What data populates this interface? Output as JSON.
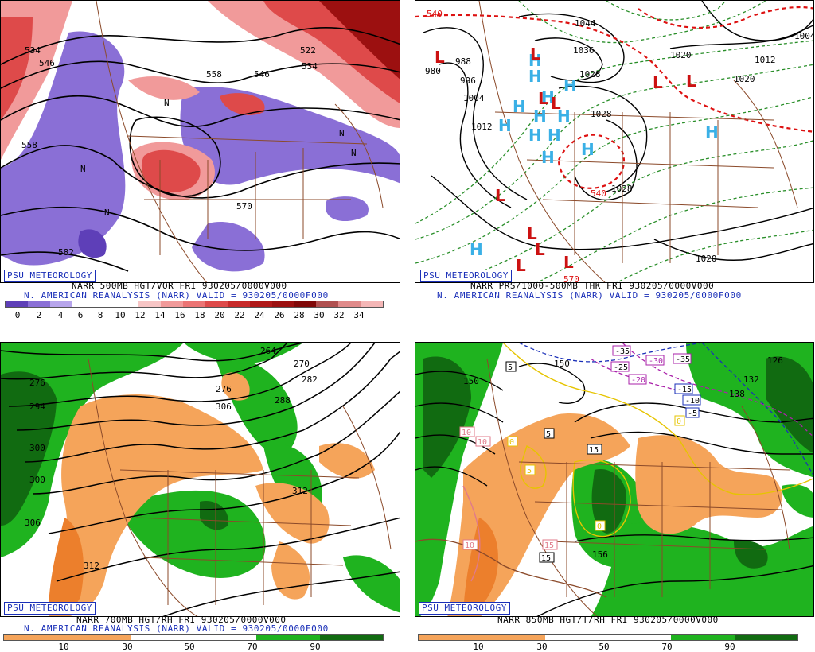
{
  "panels": [
    {
      "badge": "PSU METEOROLOGY",
      "title": "NARR 500MB HGT/VOR FRI 930205/0000V000",
      "subtitle": "N. AMERICAN REANALYSIS (NARR) VALID = 930205/0000F000",
      "colorbar_ticks": [
        "0",
        "2",
        "4",
        "6",
        "8",
        "10",
        "12",
        "14",
        "16",
        "18",
        "20",
        "22",
        "24",
        "26",
        "28",
        "30",
        "32",
        "34"
      ],
      "contour_labels": [
        "534",
        "546",
        "558",
        "522",
        "534",
        "546",
        "558",
        "570",
        "582"
      ],
      "markers": [
        "N",
        "N",
        "N",
        "N",
        "N"
      ]
    },
    {
      "badge": "PSU METEOROLOGY",
      "title": "NARR PRS/1000-500MB THK FRI 930205/0000V000",
      "subtitle": "N. AMERICAN REANALYSIS (NARR) VALID = 930205/0000F000",
      "contour_labels": [
        "540",
        "980",
        "988",
        "996",
        "1004",
        "1012",
        "1044",
        "1036",
        "1028",
        "1020",
        "1028",
        "1028",
        "1004",
        "1012",
        "1020",
        "540",
        "570",
        "1020"
      ],
      "high_label": "H",
      "low_label": "L"
    },
    {
      "badge": "PSU METEOROLOGY",
      "title": "NARR 700MB HGT/RH FRI 930205/0000V000",
      "subtitle": "N. AMERICAN REANALYSIS (NARR) VALID = 930205/0000F000",
      "colorbar_ticks": [
        "10",
        "30",
        "50",
        "70",
        "90"
      ],
      "contour_labels": [
        "264",
        "270",
        "276",
        "282",
        "276",
        "288",
        "294",
        "300",
        "306",
        "300",
        "306",
        "312",
        "312"
      ]
    },
    {
      "badge": "PSU METEOROLOGY",
      "title": "NARR 850MB HGT/T/RH FRI 930205/0000V000",
      "colorbar_ticks": [
        "10",
        "30",
        "50",
        "70",
        "90"
      ],
      "contour_labels": [
        "150",
        "132",
        "126",
        "138",
        "156",
        "150"
      ],
      "temp_labels": [
        "-35",
        "-30",
        "-25",
        "-20",
        "-35",
        "-15",
        "-10",
        "-5",
        "5",
        "0",
        "5",
        "10",
        "15",
        "10",
        "15",
        "0",
        "0",
        "5",
        "15",
        "10"
      ]
    }
  ],
  "colors": {
    "vort_neg": "#8a6fd6",
    "vort_pos_light": "#f19a9a",
    "vort_pos_mid": "#de4a4a",
    "vort_pos_dark": "#9c1010",
    "rh_dry": "#f5a45a",
    "rh_moist": "#1fb31f",
    "rh_wet": "#116b11",
    "border": "#8b4a2a",
    "high": "#3ab0e6",
    "low": "#cc1111",
    "badge": "#1a2fb8"
  }
}
